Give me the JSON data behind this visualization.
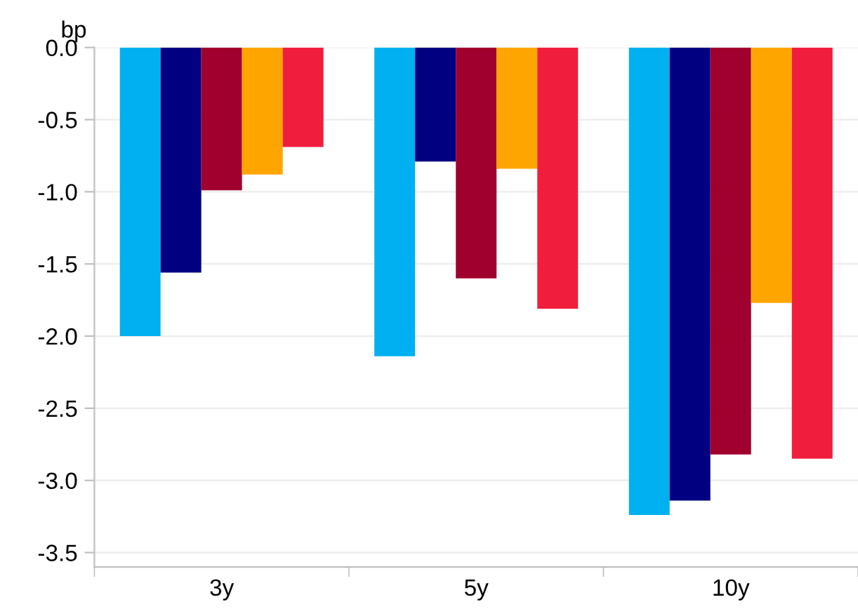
{
  "chart_data": {
    "type": "bar",
    "ylabel": "bp",
    "categories": [
      "3y",
      "5y",
      "10y"
    ],
    "series": [
      {
        "color": "#00b0f0",
        "values": [
          -2.0,
          -2.14,
          -3.24
        ]
      },
      {
        "color": "#000080",
        "values": [
          -1.56,
          -0.79,
          -3.14
        ]
      },
      {
        "color": "#a0002d",
        "values": [
          -0.99,
          -1.6,
          -2.82
        ]
      },
      {
        "color": "#ffa500",
        "values": [
          -0.88,
          -0.84,
          -1.77
        ]
      },
      {
        "color": "#f01e3c",
        "values": [
          -0.69,
          -1.81,
          -2.85
        ]
      }
    ],
    "ylim": [
      -3.6,
      0.0
    ],
    "yticks": [
      {
        "value": 0,
        "label": "0.0"
      },
      {
        "value": -0.5,
        "label": "-0.5"
      },
      {
        "value": -1,
        "label": "-1.0"
      },
      {
        "value": -1.5,
        "label": "-1.5"
      },
      {
        "value": -2,
        "label": "-2.0"
      },
      {
        "value": -2.5,
        "label": "-2.5"
      },
      {
        "value": -3,
        "label": "-3.0"
      },
      {
        "value": -3.5,
        "label": "-3.5"
      }
    ],
    "grid": "y",
    "legend": false
  }
}
